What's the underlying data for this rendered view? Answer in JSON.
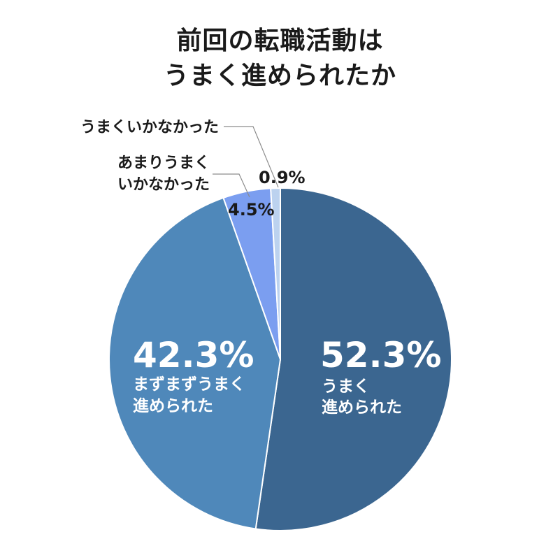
{
  "chart_data": {
    "type": "pie",
    "title": [
      "前回の転職活動は",
      "うまく進められたか"
    ],
    "slices": [
      {
        "label": [
          "うまく",
          "進められた"
        ],
        "value_label": "52.3%",
        "value": 52.3,
        "color": "#3b6690"
      },
      {
        "label": [
          "まずまずうまく",
          "進められた"
        ],
        "value_label": "42.3%",
        "value": 42.3,
        "color": "#4f88ba"
      },
      {
        "label": [
          "あまりうまく",
          "いかなかった"
        ],
        "value_label": "4.5%",
        "value": 4.5,
        "color": "#7b9ef0"
      },
      {
        "label": [
          "うまくいかなかった"
        ],
        "value_label": "0.9%",
        "value": 0.9,
        "color": "#bcd2ef"
      }
    ]
  }
}
